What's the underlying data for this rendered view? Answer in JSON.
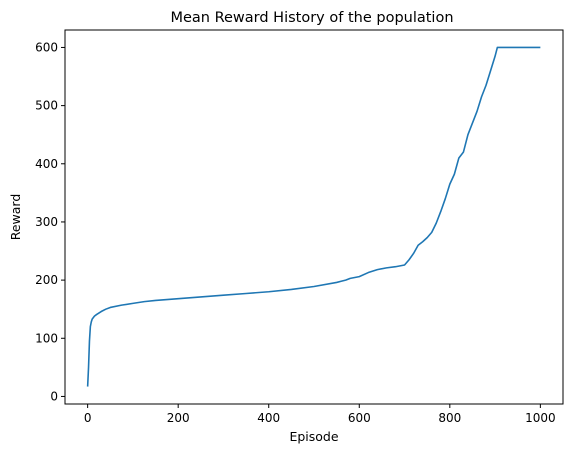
{
  "chart_data": {
    "type": "line",
    "title": "Mean Reward History of the population",
    "xlabel": "Episode",
    "ylabel": "Reward",
    "xlim": [
      -50,
      1050
    ],
    "ylim": [
      -13,
      630
    ],
    "xticks": [
      0,
      200,
      400,
      600,
      800,
      1000
    ],
    "yticks": [
      0,
      100,
      200,
      300,
      400,
      500,
      600
    ],
    "grid": false,
    "series": [
      {
        "color": "#1f77b4",
        "x": [
          0,
          2,
          4,
          6,
          8,
          10,
          15,
          20,
          30,
          40,
          50,
          75,
          100,
          125,
          150,
          200,
          250,
          300,
          350,
          400,
          450,
          500,
          550,
          560,
          570,
          580,
          600,
          620,
          640,
          660,
          680,
          700,
          710,
          720,
          730,
          740,
          750,
          760,
          770,
          780,
          790,
          800,
          810,
          820,
          830,
          840,
          850,
          860,
          870,
          880,
          890,
          900,
          905,
          910,
          950,
          1000
        ],
        "y": [
          17,
          50,
          95,
          120,
          128,
          133,
          138,
          141,
          146,
          150,
          153,
          157,
          160,
          163,
          165,
          168,
          171,
          174,
          177,
          180,
          184,
          189,
          196,
          198,
          200,
          203,
          206,
          213,
          218,
          221,
          223,
          226,
          235,
          246,
          260,
          266,
          273,
          282,
          298,
          318,
          340,
          365,
          382,
          410,
          420,
          450,
          470,
          490,
          515,
          535,
          560,
          585,
          600,
          600,
          600,
          600
        ]
      }
    ]
  }
}
